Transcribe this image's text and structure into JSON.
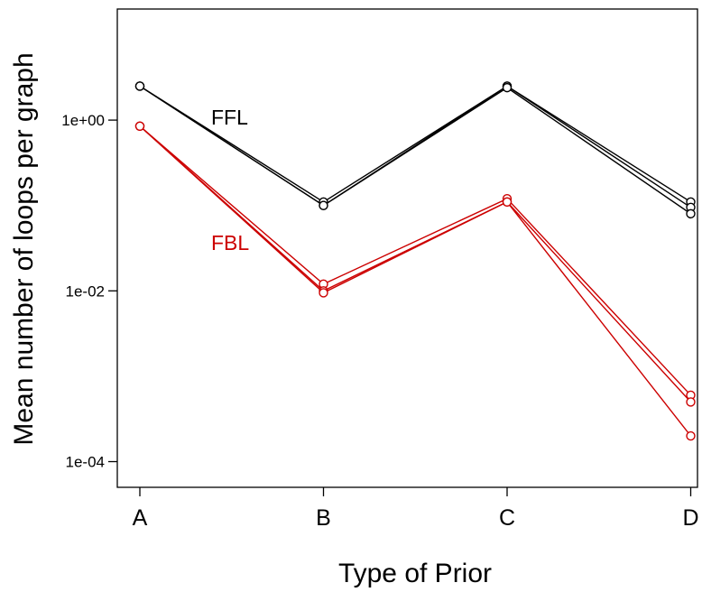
{
  "chart_data": {
    "type": "line",
    "title": "",
    "xlabel": "Type of Prior",
    "ylabel": "Mean number of loops per graph",
    "y_scale": "log",
    "ylim": [
      5e-05,
      20
    ],
    "y_ticks": [
      {
        "value": 0.0001,
        "label": "1e-04"
      },
      {
        "value": 0.01,
        "label": "1e-02"
      },
      {
        "value": 1,
        "label": "1e+00"
      }
    ],
    "categories": [
      "A",
      "B",
      "C",
      "D"
    ],
    "annotations": [
      {
        "text": "FFL",
        "color": "#000000"
      },
      {
        "text": "FBL",
        "color": "#cc0000"
      }
    ],
    "series": [
      {
        "group": "FFL",
        "color": "#000000",
        "values": [
          2.5,
          0.11,
          2.5,
          0.11
        ]
      },
      {
        "group": "FFL",
        "color": "#000000",
        "values": [
          2.5,
          0.1,
          2.5,
          0.095
        ]
      },
      {
        "group": "FFL",
        "color": "#000000",
        "values": [
          2.5,
          0.1,
          2.4,
          0.08
        ]
      },
      {
        "group": "FBL",
        "color": "#cc0000",
        "values": [
          0.85,
          0.012,
          0.12,
          0.0006
        ]
      },
      {
        "group": "FBL",
        "color": "#cc0000",
        "values": [
          0.85,
          0.01,
          0.11,
          0.0005
        ]
      },
      {
        "group": "FBL",
        "color": "#cc0000",
        "values": [
          0.85,
          0.0095,
          0.11,
          0.0002
        ]
      }
    ]
  }
}
